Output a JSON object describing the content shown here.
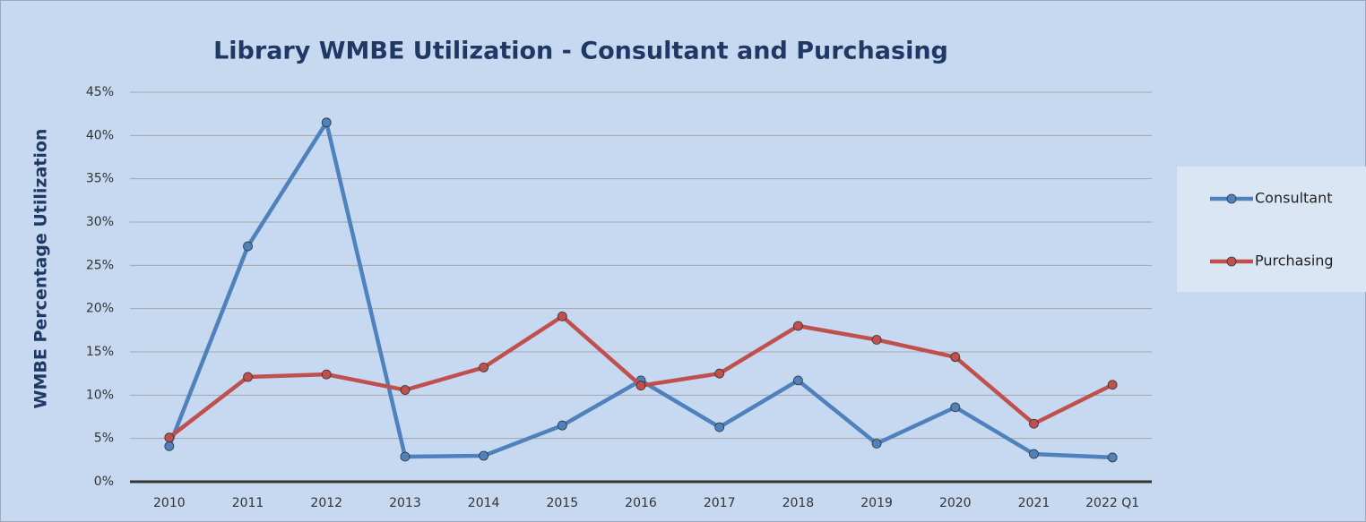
{
  "chart_data": {
    "type": "line",
    "title": "Library WMBE Utilization - Consultant and Purchasing",
    "y_label": "WMBE Percentage Utilization",
    "categories": [
      "2010",
      "2011",
      "2012",
      "2013",
      "2014",
      "2015",
      "2016",
      "2017",
      "2018",
      "2019",
      "2020",
      "2021",
      "2022 Q1"
    ],
    "series": [
      {
        "name": "Consultant",
        "color": "#4f81bd",
        "values": [
          4.1,
          27.2,
          41.5,
          2.9,
          3.0,
          6.5,
          11.7,
          6.3,
          11.7,
          4.4,
          8.6,
          3.2,
          2.8
        ]
      },
      {
        "name": "Purchasing",
        "color": "#c0504d",
        "values": [
          5.1,
          12.1,
          12.4,
          10.6,
          13.2,
          19.1,
          11.1,
          12.5,
          18.0,
          16.4,
          14.4,
          6.7,
          11.2
        ]
      }
    ],
    "ylim": [
      0,
      45
    ],
    "yticks": [
      {
        "value": 0,
        "label": "0%"
      },
      {
        "value": 5,
        "label": "5%"
      },
      {
        "value": 10,
        "label": "10%"
      },
      {
        "value": 15,
        "label": "15%"
      },
      {
        "value": 20,
        "label": "20%"
      },
      {
        "value": 25,
        "label": "25%"
      },
      {
        "value": 30,
        "label": "30%"
      },
      {
        "value": 35,
        "label": "35%"
      },
      {
        "value": 40,
        "label": "40%"
      },
      {
        "value": 45,
        "label": "45%"
      }
    ],
    "grid": true,
    "legend": "right"
  }
}
